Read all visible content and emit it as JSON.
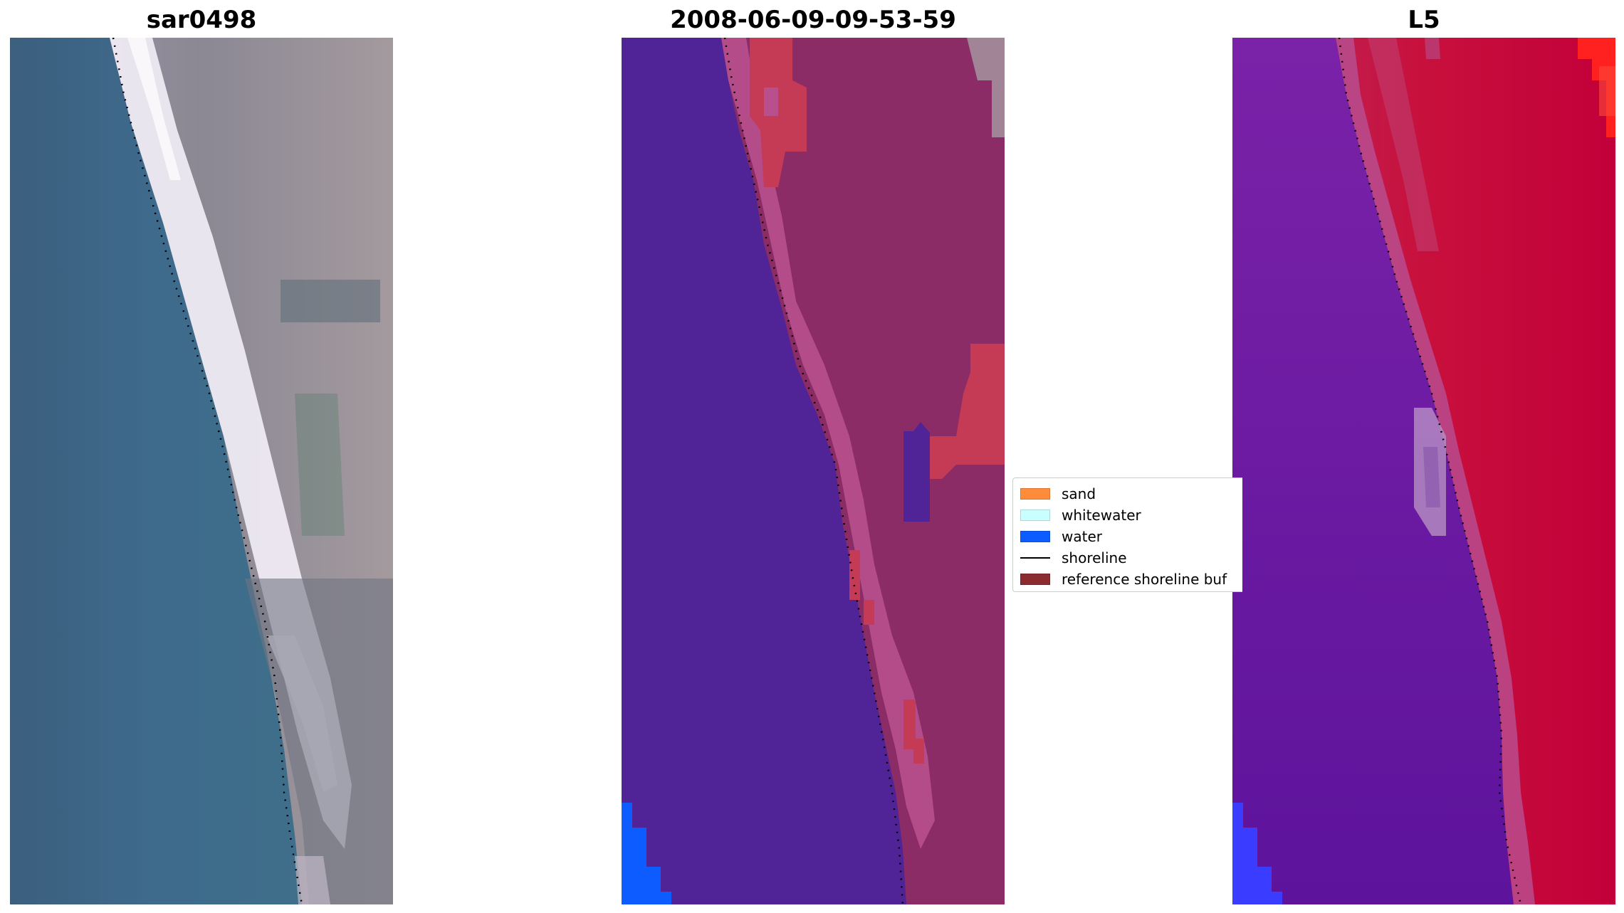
{
  "panels": [
    {
      "title": "sar0498",
      "kind": "rgb"
    },
    {
      "title": "2008-06-09-09-53-59",
      "kind": "classification"
    },
    {
      "title": "L5",
      "kind": "mndwi"
    }
  ],
  "legend": {
    "items": [
      {
        "label": "sand",
        "type": "patch",
        "color": "#ff8c3a"
      },
      {
        "label": "whitewater",
        "type": "patch",
        "color": "#c9ffff"
      },
      {
        "label": "water",
        "type": "patch",
        "color": "#0c5cff"
      },
      {
        "label": "shoreline",
        "type": "line",
        "color": "#000000"
      },
      {
        "label": "reference shoreline buf",
        "type": "patch",
        "color": "#8b2a2f"
      }
    ]
  },
  "colors": {
    "ocean": "#3a6688",
    "whitewater_rgb": "#f2eef6",
    "land_rgb": "#8c8a96",
    "class_water": "#502497",
    "class_land": "#8b2c66",
    "class_buffer_pink": "#b8508e",
    "class_red": "#c53a55",
    "class_blue": "#0c5cff",
    "l5_water": "#6a1aa0",
    "l5_land": "#c8103c",
    "l5_bright": "#ff2020"
  }
}
